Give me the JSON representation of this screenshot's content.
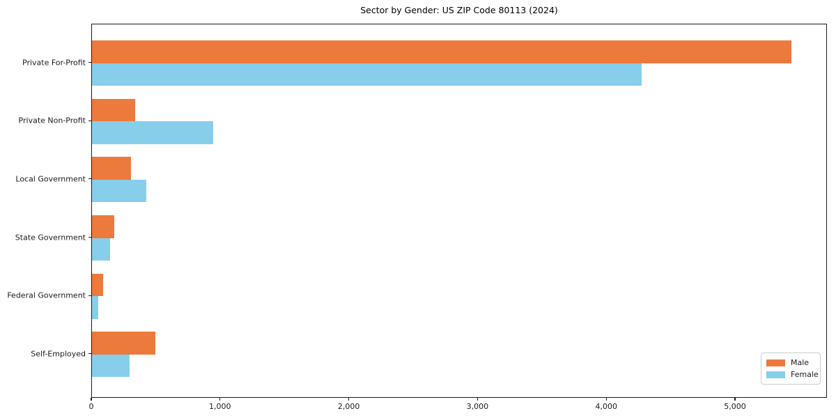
{
  "title": "Sector by Gender: US ZIP Code 80113 (2024)",
  "colors": {
    "male": "#ec7a3d",
    "female": "#87ceeb",
    "axis": "#1a1a1a",
    "legend_border": "#cccccc",
    "background": "#ffffff"
  },
  "chart_data": {
    "type": "bar",
    "orientation": "horizontal",
    "title": "Sector by Gender: US ZIP Code 80113 (2024)",
    "xlabel": "",
    "ylabel": "",
    "categories": [
      "Private For-Profit",
      "Private Non-Profit",
      "Local Government",
      "State Government",
      "Federal Government",
      "Self-Employed"
    ],
    "series": [
      {
        "name": "Male",
        "color": "#ec7a3d",
        "values": [
          5430,
          335,
          305,
          175,
          85,
          490
        ]
      },
      {
        "name": "Female",
        "color": "#87ceeb",
        "values": [
          4270,
          940,
          420,
          140,
          50,
          290
        ]
      }
    ],
    "xlim": [
      0,
      5714
    ],
    "xticks": [
      {
        "value": 0,
        "label": "0"
      },
      {
        "value": 1000,
        "label": "1,000"
      },
      {
        "value": 2000,
        "label": "2,000"
      },
      {
        "value": 3000,
        "label": "3,000"
      },
      {
        "value": 4000,
        "label": "4,000"
      },
      {
        "value": 5000,
        "label": "5,000"
      }
    ],
    "grid": false,
    "legend": {
      "position": "lower right",
      "entries": [
        "Male",
        "Female"
      ]
    }
  }
}
